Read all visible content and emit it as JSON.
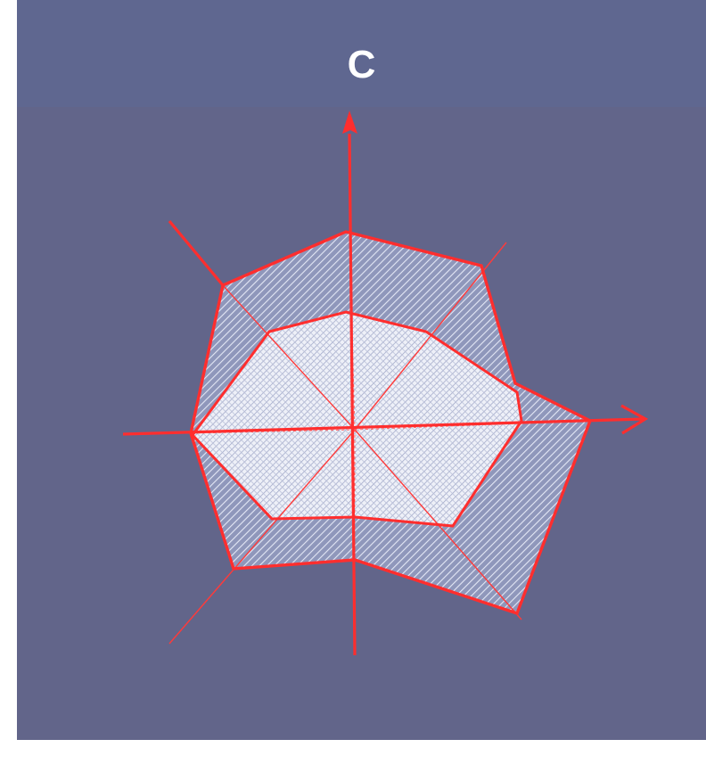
{
  "figure": {
    "panel_label": "C",
    "colors": {
      "background": "#62658a",
      "background_top": "#5f6790",
      "axis": "#ff3a3a",
      "outer_fill": "#a8b0cc",
      "inner_fill": "#dfe3f2",
      "label": "#ffffff"
    }
  }
}
